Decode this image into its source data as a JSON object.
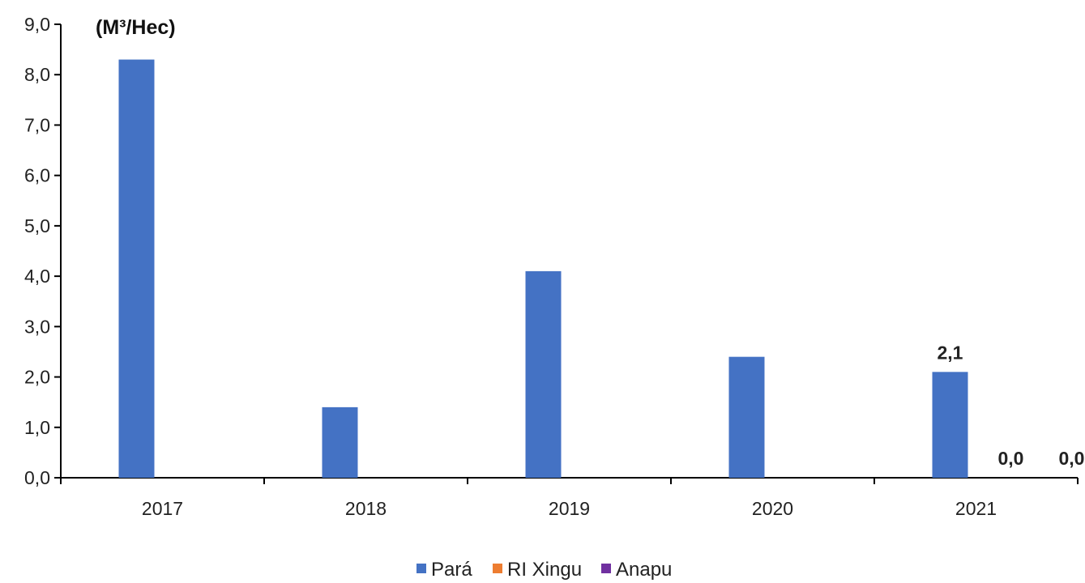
{
  "chart_data": {
    "type": "bar",
    "unit_label": "(M³/Hec)",
    "categories": [
      "2017",
      "2018",
      "2019",
      "2020",
      "2021"
    ],
    "series": [
      {
        "name": "Pará",
        "color": "#4472C4",
        "values": [
          8.3,
          1.4,
          4.1,
          2.4,
          2.1
        ]
      },
      {
        "name": "RI Xingu",
        "color": "#ED7D31",
        "values": [
          null,
          null,
          null,
          null,
          0.0
        ]
      },
      {
        "name": "Anapu",
        "color": "#7030A0",
        "values": [
          null,
          null,
          null,
          null,
          0.0
        ]
      }
    ],
    "data_labels": [
      {
        "series": 0,
        "category": 4,
        "text": "2,1"
      },
      {
        "series": 1,
        "category": 4,
        "text": "0,0"
      },
      {
        "series": 2,
        "category": 4,
        "text": "0,0"
      }
    ],
    "ylim": [
      0,
      9
    ],
    "yticks": [
      "0,0",
      "1,0",
      "2,0",
      "3,0",
      "4,0",
      "5,0",
      "6,0",
      "7,0",
      "8,0",
      "9,0"
    ],
    "legend_position": "bottom",
    "grid": false
  }
}
